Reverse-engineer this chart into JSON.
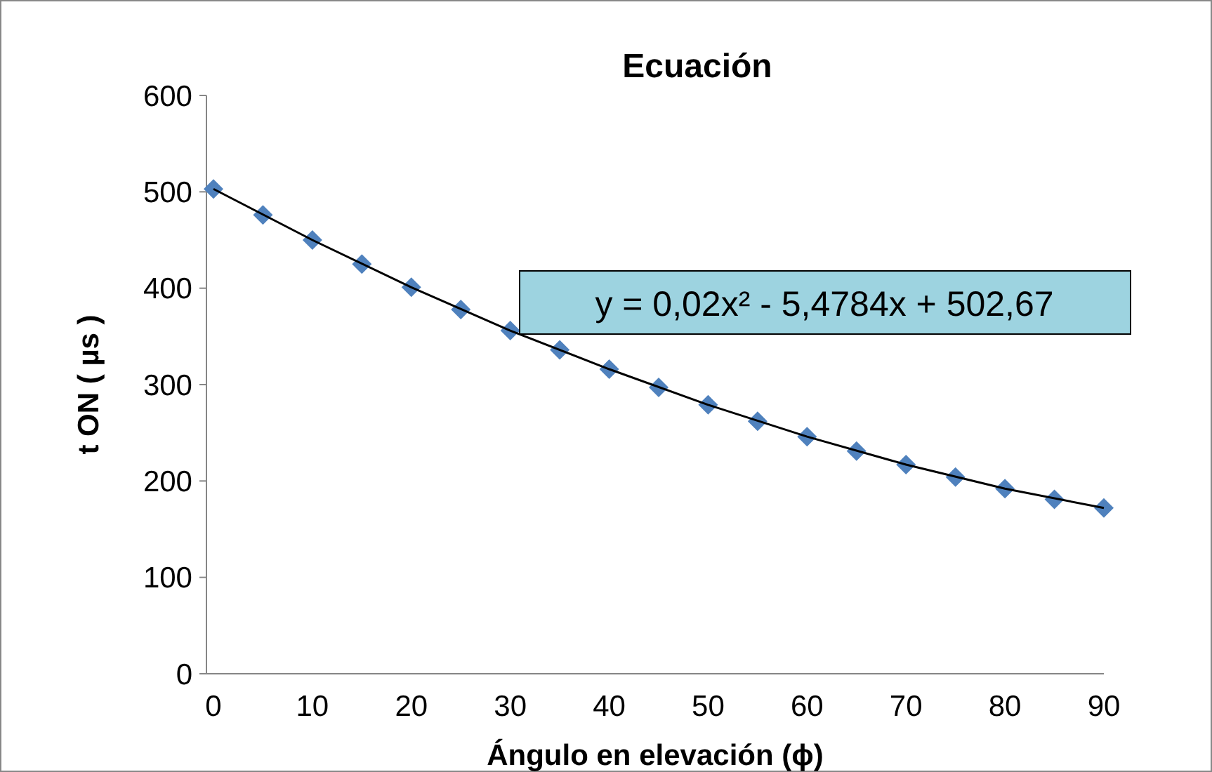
{
  "chart_data": {
    "type": "scatter",
    "title": "Ecuación",
    "xlabel": "Ángulo en elevación (ϕ)",
    "ylabel": "t ON ( µs )",
    "xlim": [
      0,
      90
    ],
    "xticks": [
      0,
      10,
      20,
      30,
      40,
      50,
      60,
      70,
      80,
      90
    ],
    "ylim": [
      0,
      600
    ],
    "yticks": [
      0,
      100,
      200,
      300,
      400,
      500,
      600
    ],
    "marker": "diamond",
    "annotations": [
      "y = 0,02x² - 5,4784x + 502,67"
    ],
    "series": [
      {
        "color": "#4f81bd",
        "x": [
          0,
          5,
          10,
          15,
          20,
          25,
          30,
          35,
          40,
          45,
          50,
          55,
          60,
          65,
          70,
          75,
          80,
          85,
          90
        ],
        "values": [
          503,
          476,
          450,
          425,
          401,
          378,
          356,
          336,
          316,
          297,
          279,
          262,
          246,
          231,
          217,
          204,
          192,
          181,
          172
        ]
      },
      {
        "type": "line",
        "color": "#000000",
        "marker": "none",
        "x": [
          0,
          10,
          20,
          30,
          40,
          50,
          60,
          70,
          80,
          90
        ],
        "values": [
          503,
          450,
          401,
          356,
          316,
          279,
          246,
          217,
          192,
          172
        ]
      }
    ]
  }
}
